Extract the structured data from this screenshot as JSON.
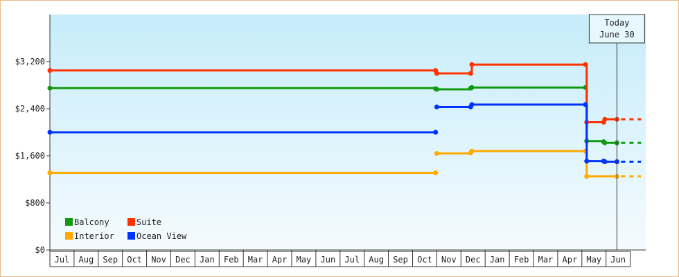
{
  "chart_data": {
    "type": "line",
    "step": true,
    "title": "",
    "xlabel": "",
    "ylabel": "",
    "ylim": [
      0,
      4000
    ],
    "y_ticks": [
      0,
      800,
      1600,
      2400,
      3200
    ],
    "y_tick_labels": [
      "$0",
      "$800",
      "$1,600",
      "$2,400",
      "$3,200"
    ],
    "categories": [
      "Jul",
      "Aug",
      "Sep",
      "Oct",
      "Nov",
      "Dec",
      "Jan",
      "Feb",
      "Mar",
      "Apr",
      "May",
      "Jun",
      "Jul",
      "Aug",
      "Sep",
      "Oct",
      "Nov",
      "Dec",
      "Jan",
      "Feb",
      "Mar",
      "Apr",
      "May",
      "Jun"
    ],
    "today_marker": {
      "line1": "Today",
      "line2": "June 30",
      "x": 23.45
    },
    "legend": {
      "placement": "bottom-left",
      "columns": 2
    },
    "series": [
      {
        "name": "Balcony",
        "color": "#119911",
        "points": [
          [
            0,
            2750
          ],
          [
            15.95,
            2740
          ],
          [
            16,
            2730
          ],
          [
            17.4,
            2750
          ],
          [
            17.45,
            2760
          ],
          [
            22.15,
            2760
          ],
          [
            22.2,
            1850
          ],
          [
            22.9,
            1840
          ],
          [
            22.95,
            1820
          ],
          [
            23.45,
            1820
          ]
        ],
        "dashed_to": 24.45
      },
      {
        "name": "Suite",
        "color": "#ff3300",
        "points": [
          [
            0,
            3050
          ],
          [
            15.95,
            3050
          ],
          [
            16,
            3000
          ],
          [
            17.4,
            3000
          ],
          [
            17.45,
            3150
          ],
          [
            22.15,
            3150
          ],
          [
            22.2,
            2170
          ],
          [
            22.9,
            2170
          ],
          [
            22.95,
            2220
          ],
          [
            23.45,
            2220
          ]
        ],
        "dashed_to": 24.45
      },
      {
        "name": "Interior",
        "color": "#ffaa00",
        "points": [
          [
            0,
            1310
          ],
          [
            15.95,
            1310
          ]
        ],
        "segments": [
          [
            [
              16,
              1640
            ],
            [
              17.4,
              1650
            ],
            [
              17.45,
              1680
            ],
            [
              22.15,
              1680
            ],
            [
              22.2,
              1250
            ],
            [
              23.45,
              1250
            ]
          ]
        ],
        "dashed_to": 24.45
      },
      {
        "name": "Ocean View",
        "color": "#0033ff",
        "points": [
          [
            0,
            2000
          ],
          [
            15.95,
            2000
          ]
        ],
        "segments": [
          [
            [
              16,
              2430
            ],
            [
              17.4,
              2430
            ],
            [
              17.45,
              2470
            ],
            [
              22.15,
              2470
            ],
            [
              22.2,
              1510
            ],
            [
              22.9,
              1510
            ],
            [
              22.95,
              1500
            ],
            [
              23.45,
              1500
            ]
          ]
        ],
        "dashed_to": 24.45
      }
    ]
  }
}
